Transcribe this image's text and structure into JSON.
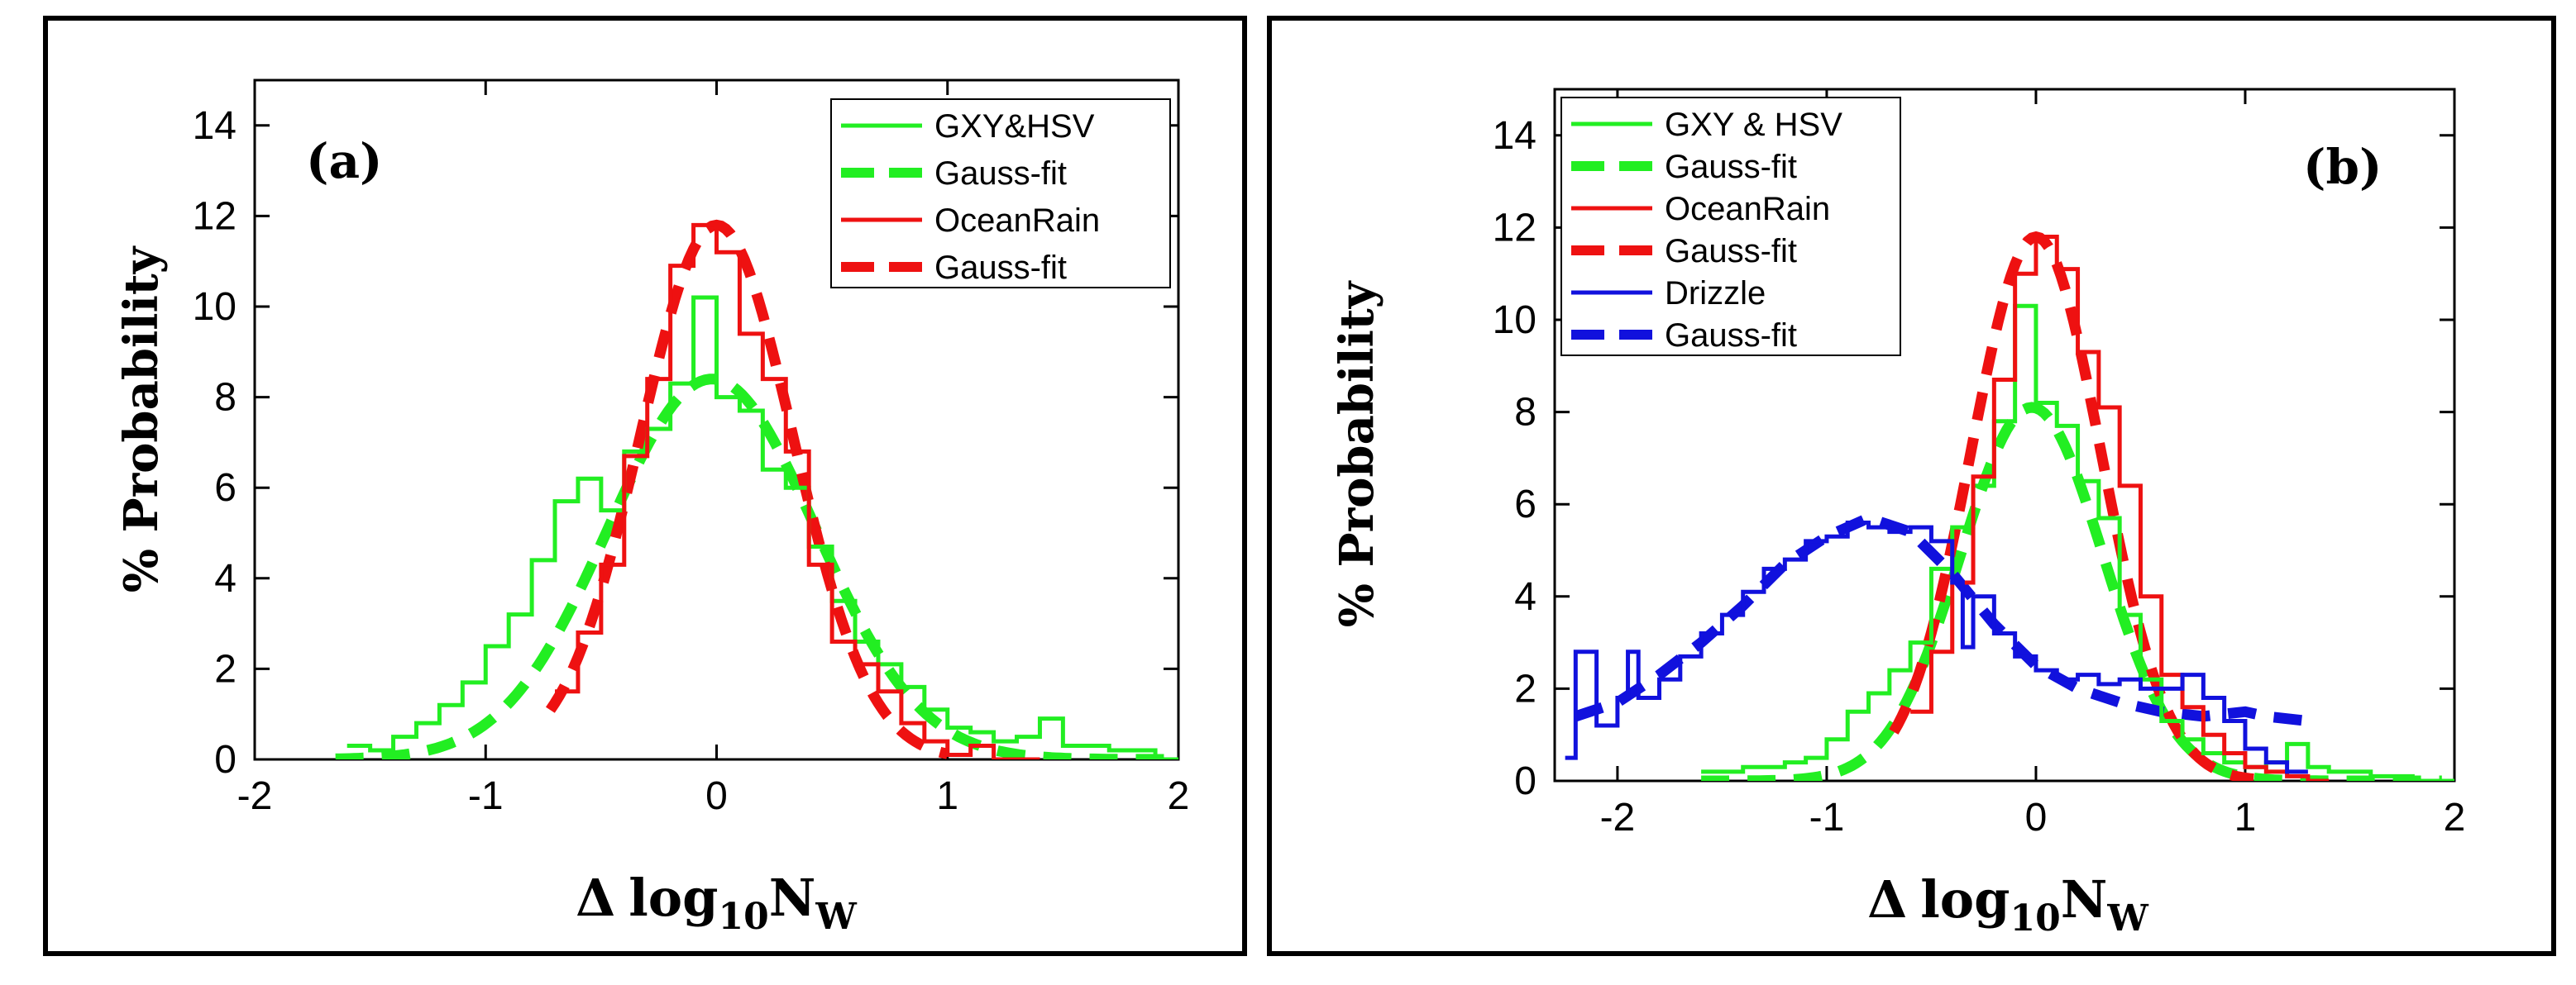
{
  "chart_data": [
    {
      "type": "line",
      "panel_label": "(a)",
      "xlabel": "Δ log₁₀N_W",
      "xlabel_parts": {
        "delta": "Δ",
        "log": "log",
        "sub": "10",
        "n": "N",
        "nsub": "W"
      },
      "ylabel": "% Probability",
      "xlim": [
        -2,
        2
      ],
      "ylim": [
        0,
        15
      ],
      "xticks": [
        -2,
        -1,
        0,
        1,
        2
      ],
      "yticks": [
        0,
        2,
        4,
        6,
        8,
        10,
        12,
        14
      ],
      "legend_position": "top-right",
      "colors": {
        "green": "#22ee22",
        "red": "#ee1111",
        "blue": "#1111dd"
      },
      "series": [
        {
          "name": "GXY&HSV",
          "style": "step",
          "color": "green",
          "x": [
            -1.6,
            -1.5,
            -1.4,
            -1.3,
            -1.2,
            -1.1,
            -1.0,
            -0.9,
            -0.8,
            -0.7,
            -0.6,
            -0.5,
            -0.4,
            -0.3,
            -0.2,
            -0.1,
            0.0,
            0.1,
            0.2,
            0.3,
            0.4,
            0.5,
            0.6,
            0.7,
            0.8,
            0.9,
            1.0,
            1.1,
            1.2,
            1.3,
            1.4,
            1.5,
            1.6,
            1.7,
            1.8,
            1.9
          ],
          "values": [
            0.3,
            0.2,
            0.5,
            0.8,
            1.2,
            1.7,
            2.5,
            3.2,
            4.4,
            5.7,
            6.2,
            5.5,
            6.8,
            7.3,
            8.3,
            10.2,
            8.0,
            7.7,
            6.4,
            6.0,
            4.7,
            3.5,
            2.6,
            2.1,
            1.6,
            1.1,
            0.7,
            0.6,
            0.4,
            0.5,
            0.9,
            0.3,
            0.3,
            0.2,
            0.2,
            0.0
          ]
        },
        {
          "name": "Gauss-fit",
          "style": "dashed",
          "color": "green",
          "mean": -0.02,
          "sigma": 0.45,
          "amplitude": 8.4,
          "x_range": [
            -1.65,
            1.95
          ]
        },
        {
          "name": "OceanRain",
          "style": "step",
          "color": "red",
          "x": [
            -0.7,
            -0.6,
            -0.5,
            -0.4,
            -0.3,
            -0.2,
            -0.1,
            0.0,
            0.1,
            0.2,
            0.3,
            0.4,
            0.5,
            0.6,
            0.7,
            0.8,
            0.9,
            1.0,
            1.1,
            1.2,
            1.3
          ],
          "values": [
            1.5,
            2.8,
            4.3,
            6.7,
            8.4,
            10.9,
            11.8,
            11.2,
            9.4,
            8.4,
            6.8,
            4.3,
            2.6,
            2.1,
            1.5,
            0.8,
            0.4,
            0.1,
            0.3,
            0.0,
            0.0
          ]
        },
        {
          "name": "Gauss-fit",
          "style": "dashed",
          "color": "red",
          "mean": 0.0,
          "sigma": 0.33,
          "amplitude": 11.8,
          "x_range": [
            -0.72,
            1.0
          ]
        }
      ]
    },
    {
      "type": "line",
      "panel_label": "(b)",
      "xlabel": "Δ log₁₀N_W",
      "xlabel_parts": {
        "delta": "Δ",
        "log": "log",
        "sub": "10",
        "n": "N",
        "nsub": "W"
      },
      "ylabel": "% Probability",
      "xlim": [
        -2.3,
        2
      ],
      "ylim": [
        0,
        15
      ],
      "xticks": [
        -2,
        -1,
        0,
        1,
        2
      ],
      "yticks": [
        0,
        2,
        4,
        6,
        8,
        10,
        12,
        14
      ],
      "legend_position": "top-left",
      "series": [
        {
          "name": "GXY & HSV",
          "style": "step",
          "color": "green",
          "x": [
            -1.6,
            -1.5,
            -1.4,
            -1.3,
            -1.2,
            -1.1,
            -1.0,
            -0.9,
            -0.8,
            -0.7,
            -0.6,
            -0.5,
            -0.4,
            -0.3,
            -0.2,
            -0.1,
            0.0,
            0.1,
            0.2,
            0.3,
            0.4,
            0.5,
            0.6,
            0.7,
            0.8,
            0.9,
            1.0,
            1.1,
            1.2,
            1.3,
            1.4,
            1.5,
            1.6,
            1.7,
            1.8,
            1.9
          ],
          "values": [
            0.2,
            0.2,
            0.3,
            0.3,
            0.4,
            0.5,
            0.9,
            1.5,
            1.9,
            2.4,
            3.0,
            4.6,
            5.5,
            6.4,
            7.8,
            10.3,
            8.2,
            7.7,
            6.5,
            5.7,
            3.6,
            2.2,
            1.3,
            0.9,
            0.6,
            0.4,
            0.3,
            0.4,
            0.8,
            0.3,
            0.2,
            0.2,
            0.1,
            0.1,
            0.0,
            0.0
          ]
        },
        {
          "name": "Gauss-fit",
          "style": "dashed",
          "color": "green",
          "mean": -0.02,
          "sigma": 0.34,
          "amplitude": 8.1,
          "x_range": [
            -1.6,
            1.95
          ]
        },
        {
          "name": "OceanRain",
          "style": "step",
          "color": "red",
          "x": [
            -0.6,
            -0.5,
            -0.4,
            -0.3,
            -0.2,
            -0.1,
            0.0,
            0.1,
            0.2,
            0.3,
            0.4,
            0.5,
            0.6,
            0.7,
            0.8,
            0.9,
            1.0,
            1.1,
            1.2,
            1.3
          ],
          "values": [
            1.5,
            2.8,
            4.3,
            6.6,
            8.7,
            11.0,
            11.8,
            11.1,
            9.3,
            8.1,
            6.4,
            4.0,
            2.3,
            1.6,
            1.0,
            0.6,
            0.3,
            0.2,
            0.1,
            0.0
          ]
        },
        {
          "name": "Gauss-fit",
          "style": "dashed",
          "color": "red",
          "mean": 0.0,
          "sigma": 0.31,
          "amplitude": 11.8,
          "x_range": [
            -0.68,
            1.05
          ]
        },
        {
          "name": "Drizzle",
          "style": "step",
          "color": "blue",
          "x": [
            -2.25,
            -2.2,
            -2.1,
            -2.0,
            -1.95,
            -1.9,
            -1.8,
            -1.7,
            -1.6,
            -1.5,
            -1.4,
            -1.3,
            -1.2,
            -1.1,
            -1.0,
            -0.9,
            -0.8,
            -0.7,
            -0.6,
            -0.5,
            -0.4,
            -0.35,
            -0.3,
            -0.2,
            -0.1,
            0.0,
            0.1,
            0.2,
            0.3,
            0.4,
            0.5,
            0.6,
            0.7,
            0.8,
            0.9,
            1.0,
            1.1,
            1.2
          ],
          "values": [
            0.5,
            2.8,
            1.2,
            1.8,
            2.8,
            1.8,
            2.2,
            2.7,
            3.2,
            3.6,
            4.1,
            4.6,
            4.8,
            5.2,
            5.3,
            5.6,
            5.5,
            5.4,
            5.5,
            5.2,
            4.3,
            2.9,
            4.0,
            3.2,
            2.7,
            2.4,
            2.2,
            2.3,
            2.1,
            2.2,
            2.0,
            2.0,
            2.3,
            1.8,
            1.3,
            0.7,
            0.4,
            0.2
          ]
        },
        {
          "name": "Gauss-fit",
          "style": "dashed",
          "color": "blue",
          "points_x": [
            -2.2,
            -2.0,
            -1.8,
            -1.6,
            -1.4,
            -1.2,
            -1.0,
            -0.8,
            -0.6,
            -0.4,
            -0.2,
            0.0,
            0.2,
            0.4,
            0.6,
            0.8,
            1.0,
            1.1,
            1.3
          ],
          "points_y": [
            1.4,
            1.7,
            2.3,
            3.0,
            3.8,
            4.7,
            5.3,
            5.7,
            5.4,
            4.5,
            3.4,
            2.5,
            2.0,
            1.7,
            1.5,
            1.4,
            1.5,
            1.4,
            1.3
          ]
        }
      ]
    }
  ]
}
